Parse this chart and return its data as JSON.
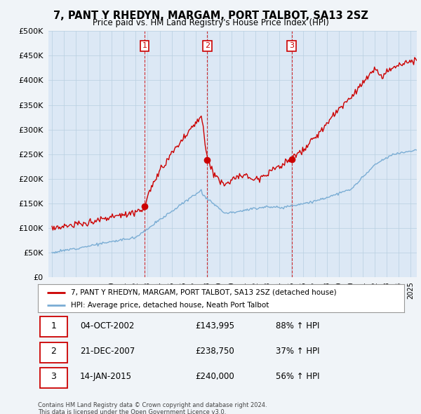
{
  "title": "7, PANT Y RHEDYN, MARGAM, PORT TALBOT, SA13 2SZ",
  "subtitle": "Price paid vs. HM Land Registry's House Price Index (HPI)",
  "ytick_values": [
    0,
    50000,
    100000,
    150000,
    200000,
    250000,
    300000,
    350000,
    400000,
    450000,
    500000
  ],
  "ylim": [
    0,
    500000
  ],
  "xlim_start": 1994.7,
  "xlim_end": 2025.5,
  "red_color": "#cc0000",
  "blue_color": "#7aadd4",
  "transactions": [
    {
      "num": 1,
      "year": 2002.75,
      "price": 143995,
      "label": "04-OCT-2002",
      "price_str": "£143,995",
      "hpi_str": "88% ↑ HPI"
    },
    {
      "num": 2,
      "year": 2007.97,
      "price": 238750,
      "label": "21-DEC-2007",
      "price_str": "£238,750",
      "hpi_str": "37% ↑ HPI"
    },
    {
      "num": 3,
      "year": 2015.04,
      "price": 240000,
      "label": "14-JAN-2015",
      "price_str": "£240,000",
      "hpi_str": "56% ↑ HPI"
    }
  ],
  "legend_line1": "7, PANT Y RHEDYN, MARGAM, PORT TALBOT, SA13 2SZ (detached house)",
  "legend_line2": "HPI: Average price, detached house, Neath Port Talbot",
  "footer1": "Contains HM Land Registry data © Crown copyright and database right 2024.",
  "footer2": "This data is licensed under the Open Government Licence v3.0.",
  "background_color": "#f0f4f8",
  "plot_bg_color": "#dce8f5"
}
